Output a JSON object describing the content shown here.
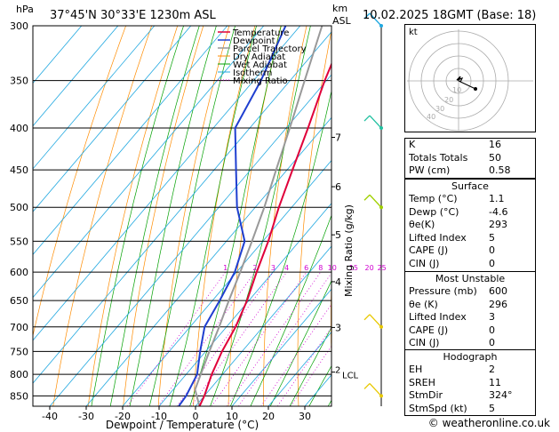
{
  "header": {
    "pressure_unit": "hPa",
    "location": "37°45'N  30°33'E  1230m  ASL",
    "height_unit_line1": "km",
    "height_unit_line2": "ASL",
    "datetime": "10.02.2025  18GMT  (Base: 18)"
  },
  "legend": [
    {
      "label": "Temperature",
      "color": "#e0003a",
      "style": "solid"
    },
    {
      "label": "Dewpoint",
      "color": "#1f3fd0",
      "style": "solid"
    },
    {
      "label": "Parcel Trajectory",
      "color": "#999999",
      "style": "solid"
    },
    {
      "label": "Dry Adiabat",
      "color": "#ff8c00",
      "style": "solid"
    },
    {
      "label": "Wet Adiabat",
      "color": "#00a000",
      "style": "solid"
    },
    {
      "label": "Isotherm",
      "color": "#20a8e0",
      "style": "solid"
    },
    {
      "label": "Mixing Ratio",
      "color": "#d000d0",
      "style": "dotted"
    }
  ],
  "chart_data": {
    "type": "skew-t",
    "xlabel": "Dewpoint / Temperature (°C)",
    "ylabel_right": "Mixing Ratio (g/kg)",
    "x_ticks": [
      -40,
      -30,
      -20,
      -10,
      0,
      10,
      20,
      30
    ],
    "x_tick_labels": [
      "-40",
      "-30",
      "-20",
      "-10",
      "0",
      "10",
      "20",
      "30"
    ],
    "pressure_levels": [
      300,
      350,
      400,
      450,
      500,
      550,
      600,
      650,
      700,
      750,
      800,
      850
    ],
    "pressure_labels": [
      "300",
      "350",
      "400",
      "450",
      "500",
      "550",
      "600",
      "650",
      "700",
      "750",
      "800",
      "850"
    ],
    "height_km_ticks": [
      {
        "km": 3,
        "label": "3"
      },
      {
        "km": 4,
        "label": "4"
      },
      {
        "km": 5,
        "label": "5"
      },
      {
        "km": 6,
        "label": "6"
      },
      {
        "km": 7,
        "label": "7"
      }
    ],
    "lcl_label": "LCL",
    "lcl_height_label": "2",
    "mixing_ratio_values": [
      1,
      2,
      3,
      4,
      6,
      8,
      10,
      15,
      20,
      25
    ],
    "mixing_ratio_labels": [
      "1",
      "2",
      "3",
      "4",
      "6",
      "8",
      "10",
      "15",
      "20",
      "25"
    ],
    "temperature": [
      {
        "p": 875,
        "t": 1.1
      },
      {
        "p": 850,
        "t": 0.0
      },
      {
        "p": 800,
        "t": -3.0
      },
      {
        "p": 750,
        "t": -5.5
      },
      {
        "p": 700,
        "t": -7.5
      },
      {
        "p": 650,
        "t": -10.5
      },
      {
        "p": 600,
        "t": -14.5
      },
      {
        "p": 550,
        "t": -18.5
      },
      {
        "p": 500,
        "t": -23.5
      },
      {
        "p": 450,
        "t": -28.5
      },
      {
        "p": 400,
        "t": -34.0
      },
      {
        "p": 350,
        "t": -40.5
      },
      {
        "p": 300,
        "t": -47.0
      }
    ],
    "dewpoint": [
      {
        "p": 875,
        "t": -4.6
      },
      {
        "p": 850,
        "t": -5.0
      },
      {
        "p": 800,
        "t": -7.0
      },
      {
        "p": 750,
        "t": -11.5
      },
      {
        "p": 700,
        "t": -16.0
      },
      {
        "p": 650,
        "t": -18.0
      },
      {
        "p": 600,
        "t": -20.5
      },
      {
        "p": 550,
        "t": -25.0
      },
      {
        "p": 500,
        "t": -35.0
      },
      {
        "p": 450,
        "t": -44.0
      },
      {
        "p": 400,
        "t": -54.0
      },
      {
        "p": 350,
        "t": -58.0
      },
      {
        "p": 300,
        "t": -64.0
      }
    ],
    "parcel": [
      {
        "p": 875,
        "t": 1.1
      },
      {
        "p": 835,
        "t": -4.0
      },
      {
        "p": 800,
        "t": -6.0
      },
      {
        "p": 750,
        "t": -9.0
      },
      {
        "p": 700,
        "t": -12.0
      },
      {
        "p": 650,
        "t": -15.5
      },
      {
        "p": 600,
        "t": -19.0
      },
      {
        "p": 550,
        "t": -23.0
      },
      {
        "p": 500,
        "t": -27.5
      },
      {
        "p": 450,
        "t": -33.0
      },
      {
        "p": 400,
        "t": -39.0
      },
      {
        "p": 350,
        "t": -46.0
      },
      {
        "p": 300,
        "t": -54.0
      }
    ],
    "wind_barbs": [
      {
        "p": 300,
        "color": "#20a8e0"
      },
      {
        "p": 400,
        "color": "#20c0a0"
      },
      {
        "p": 500,
        "color": "#a0d000"
      },
      {
        "p": 700,
        "color": "#e8c800"
      },
      {
        "p": 850,
        "color": "#e8c800"
      }
    ]
  },
  "hodograph": {
    "unit_label": "kt",
    "ring_labels": [
      "10",
      "20",
      "30",
      "40"
    ]
  },
  "indices": [
    {
      "label": "K",
      "value": "16"
    },
    {
      "label": "Totals Totals",
      "value": "50"
    },
    {
      "label": "PW (cm)",
      "value": "0.58"
    }
  ],
  "surface": {
    "title": "Surface",
    "rows": [
      {
        "label": "Temp (°C)",
        "value": "1.1"
      },
      {
        "label": "Dewp (°C)",
        "value": "-4.6"
      },
      {
        "label": "θe(K)",
        "value": "293"
      },
      {
        "label": "Lifted Index",
        "value": "5"
      },
      {
        "label": "CAPE (J)",
        "value": "0"
      },
      {
        "label": "CIN (J)",
        "value": "0"
      }
    ]
  },
  "most_unstable": {
    "title": "Most Unstable",
    "rows": [
      {
        "label": "Pressure (mb)",
        "value": "600"
      },
      {
        "label": "θe (K)",
        "value": "296"
      },
      {
        "label": "Lifted Index",
        "value": "3"
      },
      {
        "label": "CAPE (J)",
        "value": "0"
      },
      {
        "label": "CIN (J)",
        "value": "0"
      }
    ]
  },
  "hodograph_table": {
    "title": "Hodograph",
    "rows": [
      {
        "label": "EH",
        "value": "2"
      },
      {
        "label": "SREH",
        "value": "11"
      },
      {
        "label": "StmDir",
        "value": "324°"
      },
      {
        "label": "StmSpd (kt)",
        "value": "5"
      }
    ]
  },
  "footer": {
    "credit": "© weatheronline.co.uk"
  }
}
